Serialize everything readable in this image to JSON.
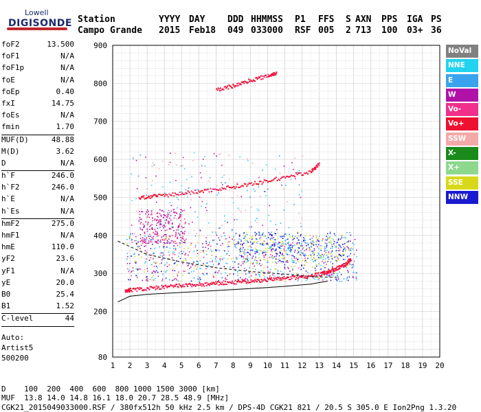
{
  "logo": {
    "brand": "Lowell",
    "name": "DIGISONDE"
  },
  "header": {
    "labels": [
      "Station",
      "YYYY",
      "DAY",
      "DDD",
      "HHMMSS",
      "P1",
      "FFS",
      "S",
      "AXN",
      "PPS",
      "IGA",
      "PS"
    ],
    "values": [
      "Campo Grande",
      "2015",
      "Feb18",
      "049",
      "033000",
      "RSF",
      "005",
      "2",
      "713",
      "100",
      "03+",
      "36"
    ]
  },
  "params": [
    {
      "name": "foF2",
      "value": "13.500"
    },
    {
      "name": "foF1",
      "value": "N/A"
    },
    {
      "name": "foF1p",
      "value": "N/A"
    },
    {
      "name": "foE",
      "value": "N/A"
    },
    {
      "name": "foEp",
      "value": "0.40"
    },
    {
      "name": "fxI",
      "value": "14.75"
    },
    {
      "name": "foEs",
      "value": "N/A"
    },
    {
      "name": "fmin",
      "value": "1.70"
    },
    {
      "sep": true
    },
    {
      "name": "MUF(D)",
      "value": "48.88"
    },
    {
      "name": "M(D)",
      "value": "3.62"
    },
    {
      "name": "D",
      "value": "N/A"
    },
    {
      "sep": true
    },
    {
      "name": "h`F",
      "value": "246.0"
    },
    {
      "name": "h`F2",
      "value": "246.0"
    },
    {
      "name": "h`E",
      "value": "N/A"
    },
    {
      "name": "h`Es",
      "value": "N/A"
    },
    {
      "sep": true
    },
    {
      "name": "hmF2",
      "value": "275.0"
    },
    {
      "name": "hmF1",
      "value": "N/A"
    },
    {
      "name": "hmE",
      "value": "110.0"
    },
    {
      "name": "yF2",
      "value": "23.6"
    },
    {
      "name": "yF1",
      "value": "N/A"
    },
    {
      "name": "yE",
      "value": "20.0"
    },
    {
      "name": "B0",
      "value": "25.4"
    },
    {
      "name": "B1",
      "value": "1.52"
    },
    {
      "sep": true
    },
    {
      "name": "C-level",
      "value": "44"
    },
    {
      "sep": true
    }
  ],
  "auto": [
    "Auto:",
    "Artist5",
    "500200"
  ],
  "legend": [
    {
      "label": "NoVal",
      "bg": "#808080",
      "fg": "#ffffff"
    },
    {
      "label": "NNE",
      "bg": "#22d3f0",
      "fg": "#ffffff"
    },
    {
      "label": "E",
      "bg": "#3aa3ee",
      "fg": "#ffffff"
    },
    {
      "label": "W",
      "bg": "#b012a8",
      "fg": "#ffffff"
    },
    {
      "label": "Vo-",
      "bg": "#f0308a",
      "fg": "#ffffff"
    },
    {
      "label": "Vo+",
      "bg": "#ee1030",
      "fg": "#ffffff"
    },
    {
      "label": "SSW",
      "bg": "#f5a8a8",
      "fg": "#ffffff"
    },
    {
      "label": "X-",
      "bg": "#1a8a1a",
      "fg": "#ffffff"
    },
    {
      "label": "X+",
      "bg": "#8ed88e",
      "fg": "#ffffff"
    },
    {
      "label": "SSE",
      "bg": "#d8d81a",
      "fg": "#ffffff"
    },
    {
      "label": "NNW",
      "bg": "#1a1ad0",
      "fg": "#ffffff"
    }
  ],
  "bottom": {
    "line1": "D    100  200  400  600  800 1000 1500 3000 [km]",
    "line2": "MUF  13.8 14.0 14.8 16.1 18.0 20.7 28.5 48.9 [MHz]",
    "line3": "CGK21_2015049033000.RSF / 380fx512h 50 kHz 2.5 km / DPS-4D CGK21 821 / 20.5 S 305.0 E Ion2Png 1.3.20"
  },
  "chart_data": {
    "type": "scatter",
    "xlim": [
      1,
      20
    ],
    "ylim": [
      80,
      900
    ],
    "xticks": [
      1,
      2,
      3,
      4,
      5,
      6,
      7,
      8,
      9,
      10,
      11,
      12,
      13,
      14,
      15,
      16,
      17,
      18,
      19,
      20
    ],
    "yticks": [
      80,
      200,
      300,
      400,
      500,
      600,
      700,
      800,
      900
    ],
    "grid": true,
    "traces": [
      {
        "name": "o-trace",
        "color": "#ee1030",
        "x": [
          1.7,
          2.0,
          3.0,
          4.0,
          5.0,
          6.0,
          7.0,
          8.0,
          9.0,
          10.0,
          11.0,
          12.0,
          13.0,
          13.5,
          14.0,
          14.5,
          14.8
        ],
        "y": [
          255,
          258,
          262,
          266,
          270,
          272,
          275,
          278,
          281,
          285,
          289,
          293,
          300,
          306,
          315,
          325,
          340
        ]
      },
      {
        "name": "second-hop",
        "color": "#ee1030",
        "x": [
          2.5,
          3.5,
          5.0,
          6.5,
          8.0,
          9.5,
          11.0,
          12.5,
          13.0
        ],
        "y": [
          500,
          505,
          512,
          520,
          530,
          540,
          555,
          570,
          590
        ]
      },
      {
        "name": "third-hop",
        "color": "#ee1030",
        "x": [
          7.0,
          8.0,
          9.0,
          10.0,
          10.5
        ],
        "y": [
          785,
          795,
          810,
          822,
          830
        ]
      },
      {
        "name": "profile",
        "color": "#000000",
        "x": [
          1.3,
          2.0,
          3.0,
          5.0,
          7.0,
          9.0,
          11.0,
          12.5,
          13.5
        ],
        "y": [
          225,
          240,
          245,
          250,
          255,
          260,
          266,
          272,
          280
        ]
      },
      {
        "name": "model-dashed",
        "color": "#000000",
        "x": [
          1.3,
          3.0,
          5.0,
          7.0,
          9.0,
          11.0,
          12.5,
          13.5,
          14.0
        ],
        "y": [
          385,
          350,
          330,
          315,
          305,
          298,
          292,
          290,
          290
        ]
      }
    ]
  }
}
